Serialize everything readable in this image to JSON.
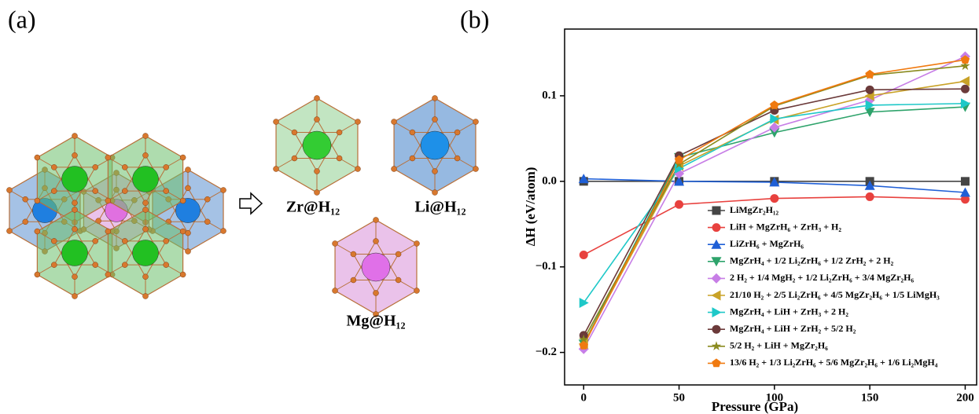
{
  "panel_labels": [
    "(a)",
    "(b)"
  ],
  "structure_labels": [
    "Zr@H₁₂",
    "Li@H₁₂",
    "Mg@H₁₂"
  ],
  "chart_data": {
    "type": "line",
    "x_label": "Pressure (GPa)",
    "y_label": "ΔH (eV/atom)",
    "x": [
      0,
      50,
      100,
      150,
      200
    ],
    "xlim": [
      -10,
      206
    ],
    "xticks": [
      0,
      50,
      100,
      150,
      200
    ],
    "ylim": [
      -0.238,
      0.178
    ],
    "yticks": [
      {
        "value": -0.2,
        "label": "−0.2"
      },
      {
        "value": -0.1,
        "label": "−0.1"
      },
      {
        "value": 0,
        "label": "0.0"
      },
      0.1
    ],
    "series": [
      {
        "name": "LiMgZr₂H₁₂",
        "color": "#454545",
        "marker": "square",
        "values": [
          0,
          0,
          0,
          0,
          0
        ]
      },
      {
        "name": "LiH + MgZrH₆ + ZrH₃ + H₂",
        "color": "#e8413e",
        "marker": "circle",
        "values": [
          -0.086,
          -0.027,
          -0.02,
          -0.018,
          -0.021
        ]
      },
      {
        "name": "LiZrH₆ + MgZrH₆",
        "color": "#1f5fd6",
        "marker": "triangle-up",
        "values": [
          0.003,
          0,
          -0.001,
          -0.005,
          -0.013
        ]
      },
      {
        "name": "MgZrH₄ + 1/2 Li₂ZrH₆ + 1/2 ZrH₂ + 2 H₂",
        "color": "#2ea36b",
        "marker": "triangle-down",
        "values": [
          -0.19,
          0.028,
          0.057,
          0.081,
          0.087
        ]
      },
      {
        "name": "2 H₂ + 1/4 MgH₂ + 1/2 Li₂ZrH₆ + 3/4 MgZr₂H₆",
        "color": "#c77ee6",
        "marker": "diamond",
        "values": [
          -0.196,
          0.009,
          0.063,
          0.095,
          0.146
        ]
      },
      {
        "name": "21/10 H₂ + 2/5 Li₂ZrH₆ + 4/5 MgZr₂H₆ + 1/5 LiMgH₃",
        "color": "#c9a227",
        "marker": "triangle-left",
        "values": [
          -0.19,
          0.018,
          0.072,
          0.1,
          0.117
        ]
      },
      {
        "name": "MgZrH₄ + LiH + ZrH₃ + 2 H₂",
        "color": "#1ec8c8",
        "marker": "triangle-right",
        "values": [
          -0.142,
          0.015,
          0.073,
          0.089,
          0.091
        ]
      },
      {
        "name": "MgZrH₄ + LiH + ZrH₂ + 5/2 H₂",
        "color": "#6b3a3a",
        "marker": "circle",
        "values": [
          -0.18,
          0.03,
          0.083,
          0.107,
          0.108
        ]
      },
      {
        "name": "5/2 H₂ + LiH + MgZr₂H₆",
        "color": "#8a8a1e",
        "marker": "star",
        "values": [
          -0.185,
          0.02,
          0.088,
          0.124,
          0.135
        ]
      },
      {
        "name": "13/6 H₂ + 1/3 Li₂ZrH₆ + 5/6 MgZr₂H₆ + 1/6 Li₂MgH₄",
        "color": "#f07a10",
        "marker": "pentagon",
        "values": [
          -0.192,
          0.025,
          0.089,
          0.125,
          0.142
        ]
      }
    ]
  }
}
